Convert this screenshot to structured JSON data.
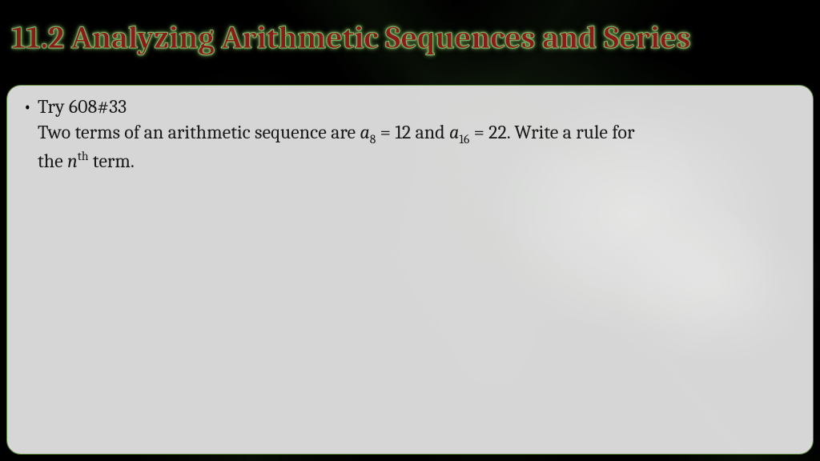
{
  "slide": {
    "title": "11.2 Analyzing Arithmetic Sequences and Series",
    "title_color": "#8b1a1a",
    "title_glow_color": "#7fb764",
    "title_fontsize": 40,
    "background_color": "#000000",
    "fractal_accent_color": "#5a8a3a"
  },
  "content_box": {
    "background_color": "#e6e6e6",
    "border_color": "#5a8a3a",
    "border_radius": 18,
    "body_fontsize": 24,
    "text_color": "#1a1a1a"
  },
  "problem": {
    "try_label": "Try 608#33",
    "line_prefix": "Two terms of an arithmetic sequence are ",
    "term1_var": "a",
    "term1_sub": "8",
    "term1_eq": " = 12 and ",
    "term2_var": "a",
    "term2_sub": "16",
    "term2_eq": " = 22.  Write a rule for",
    "line2_prefix": "the ",
    "nth_var": "n",
    "nth_sup": "th",
    "line2_suffix": " term."
  }
}
